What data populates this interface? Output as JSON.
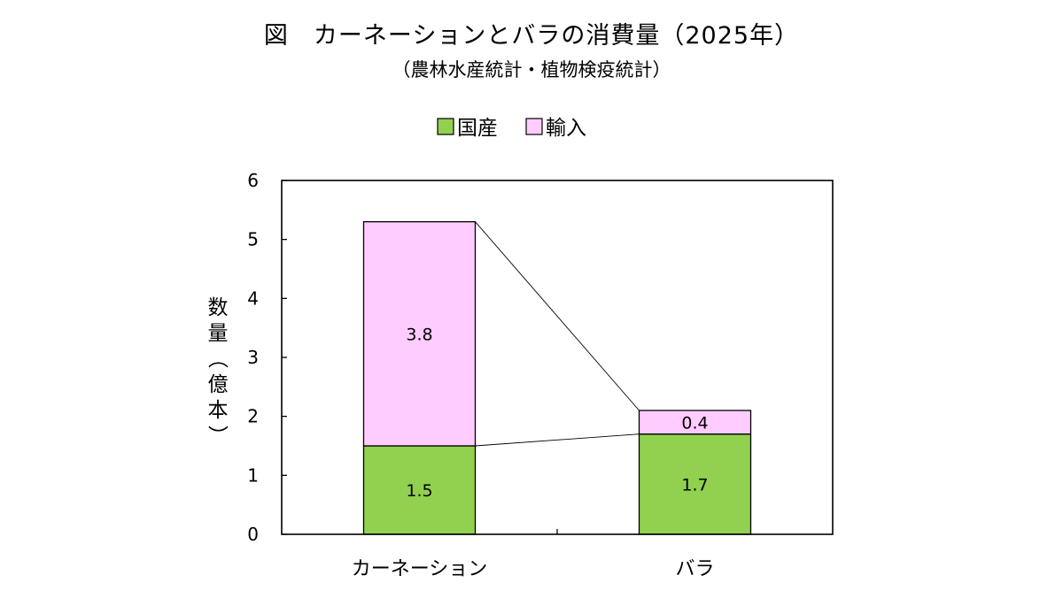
{
  "chart_data": {
    "type": "bar",
    "stacked": true,
    "title": "図　カーネーションとバラの消費量（2025年）",
    "subtitle": "（農林水産統計・植物検疫統計）",
    "ylabel": "数量（億本）",
    "xlabel": "",
    "categories": [
      "カーネーション",
      "バラ"
    ],
    "series": [
      {
        "name": "国産",
        "values": [
          1.5,
          1.7
        ],
        "labels": [
          "1.5",
          "1.7"
        ],
        "color": "#92d050"
      },
      {
        "name": "輸入",
        "values": [
          3.8,
          0.4
        ],
        "labels": [
          "3.8",
          "0.4"
        ],
        "color": "#ffccff"
      }
    ],
    "ylim": [
      0,
      6
    ],
    "yticks": [
      "0",
      "1",
      "2",
      "3",
      "4",
      "5",
      "6"
    ],
    "grid": false,
    "legend_position": "top",
    "series_lines": true
  }
}
